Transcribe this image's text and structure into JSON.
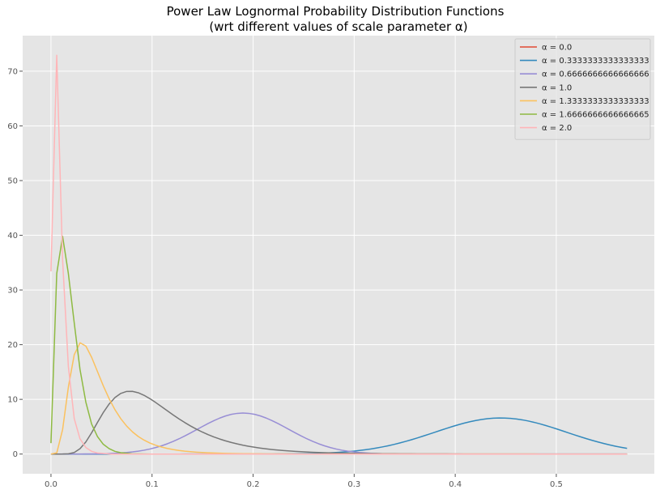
{
  "chart_data": {
    "type": "line",
    "title_line1": "Power Law Lognormal Probability Distribution Functions",
    "title_line2": "(wrt different values of scale parameter α)",
    "xlabel": "",
    "ylabel": "",
    "xlim": [
      -0.028,
      0.597
    ],
    "ylim": [
      -3.6,
      76.5
    ],
    "xticks": [
      0.0,
      0.1,
      0.2,
      0.3,
      0.4,
      0.5
    ],
    "xtick_labels": [
      "0.0",
      "0.1",
      "0.2",
      "0.3",
      "0.4",
      "0.5"
    ],
    "yticks": [
      0,
      10,
      20,
      30,
      40,
      50,
      60,
      70
    ],
    "ytick_labels": [
      "0",
      "10",
      "20",
      "30",
      "40",
      "50",
      "60",
      "70"
    ],
    "grid": true,
    "legend_position": "top-right",
    "series": [
      {
        "name": "α = 0.0",
        "color": "#E24A33",
        "shape": "flat",
        "height": 0.0
      },
      {
        "name": "α = 0.3333333333333333",
        "color": "#348ABD",
        "shape": "gauss",
        "mu": 0.445,
        "sigma": 0.065,
        "height": 6.6
      },
      {
        "name": "α = 0.6666666666666666",
        "color": "#988ED5",
        "shape": "gauss",
        "mu": 0.19,
        "sigma": 0.045,
        "height": 7.5
      },
      {
        "name": "α = 1.0",
        "color": "#777777",
        "shape": "lognormal",
        "mode": 0.078,
        "sigma": 0.45,
        "height": 11.5
      },
      {
        "name": "α = 1.3333333333333333",
        "color": "#FBC15E",
        "shape": "lognormal",
        "mode": 0.03,
        "sigma": 0.55,
        "height": 20.4
      },
      {
        "name": "α = 1.6666666666666665",
        "color": "#8EBA42",
        "shape": "points",
        "x": [
          0.0,
          0.0057,
          0.0115,
          0.0172,
          0.023,
          0.0287,
          0.0345,
          0.0402,
          0.046,
          0.0517,
          0.0575,
          0.0632,
          0.069,
          0.08,
          0.1,
          0.57
        ],
        "y": [
          2.0,
          33.0,
          39.8,
          33.0,
          24.0,
          15.5,
          9.5,
          5.5,
          3.2,
          1.8,
          1.0,
          0.5,
          0.25,
          0.05,
          0.0,
          0.0
        ]
      },
      {
        "name": "α = 2.0",
        "color": "#FFB5B8",
        "shape": "points",
        "x": [
          0.0,
          0.0057,
          0.0115,
          0.0172,
          0.023,
          0.0287,
          0.0345,
          0.0402,
          0.046,
          0.06,
          0.57
        ],
        "y": [
          33.4,
          72.9,
          35.5,
          16.0,
          6.5,
          2.8,
          1.2,
          0.5,
          0.2,
          0.0,
          0.0
        ]
      }
    ]
  }
}
